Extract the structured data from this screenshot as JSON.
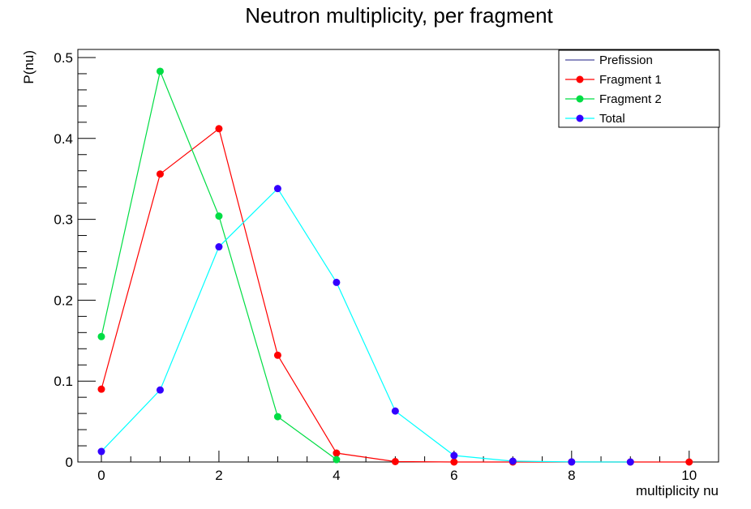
{
  "chart_data": {
    "type": "line",
    "title": "Neutron multiplicity, per fragment",
    "xlabel": "multiplicity nu",
    "ylabel": "P(nu)",
    "xlim": [
      -0.4,
      10.5
    ],
    "ylim": [
      0,
      0.51
    ],
    "x_ticks": [
      0,
      2,
      4,
      6,
      8,
      10
    ],
    "y_ticks": [
      0,
      0.1,
      0.2,
      0.3,
      0.4,
      0.5
    ],
    "y_tick_labels": [
      "0",
      "0.1",
      "0.2",
      "0.3",
      "0.4",
      "0.5"
    ],
    "legend_position": "top-right",
    "grid": false,
    "series": [
      {
        "name": "Prefission",
        "color": "#4b4b9c",
        "markers": false,
        "x": [],
        "y": []
      },
      {
        "name": "Fragment 1",
        "color": "#ff0000",
        "markers": true,
        "x": [
          0,
          1,
          2,
          3,
          4,
          5,
          6,
          7,
          8,
          9,
          10
        ],
        "y": [
          0.09,
          0.356,
          0.412,
          0.132,
          0.011,
          0.0005,
          0,
          0,
          0,
          0,
          0
        ]
      },
      {
        "name": "Fragment 2",
        "color": "#00dd44",
        "markers": true,
        "x": [
          0,
          1,
          2,
          3,
          4
        ],
        "y": [
          0.155,
          0.483,
          0.304,
          0.056,
          0.003
        ]
      },
      {
        "name": "Total",
        "color": "#00ffff",
        "marker_color": "#3300ff",
        "markers": true,
        "x": [
          0,
          1,
          2,
          3,
          4,
          5,
          6,
          7,
          8,
          9
        ],
        "y": [
          0.013,
          0.089,
          0.266,
          0.338,
          0.222,
          0.063,
          0.008,
          0.001,
          0.0001,
          0.0
        ]
      }
    ]
  }
}
